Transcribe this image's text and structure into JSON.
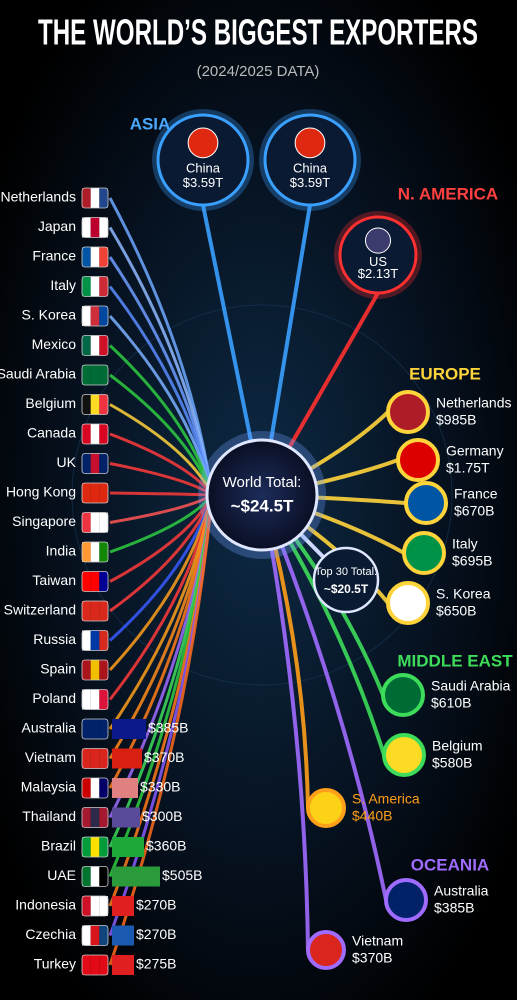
{
  "header": {
    "title": "THE WORLD’S BIGGEST EXPORTERS",
    "subtitle": "(2024/2025 DATA)"
  },
  "center": {
    "label": "World Total:",
    "value": "~$24.5T"
  },
  "subtotal": {
    "label": "Top 30 Total:",
    "value": "~$20.5T"
  },
  "regions": [
    "ASIA",
    "N. AMERICA",
    "EUROPE",
    "MIDDLE EAST",
    "OCEANIA"
  ],
  "nodes": [
    {
      "name": "China",
      "value": "$3.59T"
    },
    {
      "name": "China",
      "value": "$3.59T"
    },
    {
      "name": "US",
      "value": "$2.13T"
    },
    {
      "name": "Netherlands",
      "value": "$985B"
    },
    {
      "name": "Germany",
      "value": "$1.75T"
    },
    {
      "name": "France",
      "value": "$670B"
    },
    {
      "name": "Italy",
      "value": "$695B"
    },
    {
      "name": "S. Korea",
      "value": "$650B"
    },
    {
      "name": "Saudi Arabia",
      "value": "$610B"
    },
    {
      "name": "Belgium",
      "value": "$580B"
    },
    {
      "name": "S. America",
      "value": "$440B"
    },
    {
      "name": "Australia",
      "value": "$385B"
    },
    {
      "name": "Vietnam",
      "value": "$370B"
    }
  ],
  "list": [
    {
      "name": "Netherlands"
    },
    {
      "name": "Japan"
    },
    {
      "name": "France"
    },
    {
      "name": "Italy"
    },
    {
      "name": "S. Korea"
    },
    {
      "name": "Mexico"
    },
    {
      "name": "Saudi Arabia"
    },
    {
      "name": "Belgium"
    },
    {
      "name": "Canada"
    },
    {
      "name": "UK"
    },
    {
      "name": "Hong Kong"
    },
    {
      "name": "Singapore"
    },
    {
      "name": "India"
    },
    {
      "name": "Taiwan"
    },
    {
      "name": "Switzerland"
    },
    {
      "name": "Russia"
    },
    {
      "name": "Spain"
    },
    {
      "name": "Poland"
    },
    {
      "name": "Australia",
      "value": "$385B"
    },
    {
      "name": "Vietnam",
      "value": "$370B"
    },
    {
      "name": "Malaysia",
      "value": "$330B"
    },
    {
      "name": "Thailand",
      "value": "$300B"
    },
    {
      "name": "Brazil",
      "value": "$360B"
    },
    {
      "name": "UAE",
      "value": "$505B"
    },
    {
      "name": "Indonesia",
      "value": "$270B"
    },
    {
      "name": "Czechia",
      "value": "$270B"
    },
    {
      "name": "Turkey",
      "value": "$275B"
    }
  ]
}
